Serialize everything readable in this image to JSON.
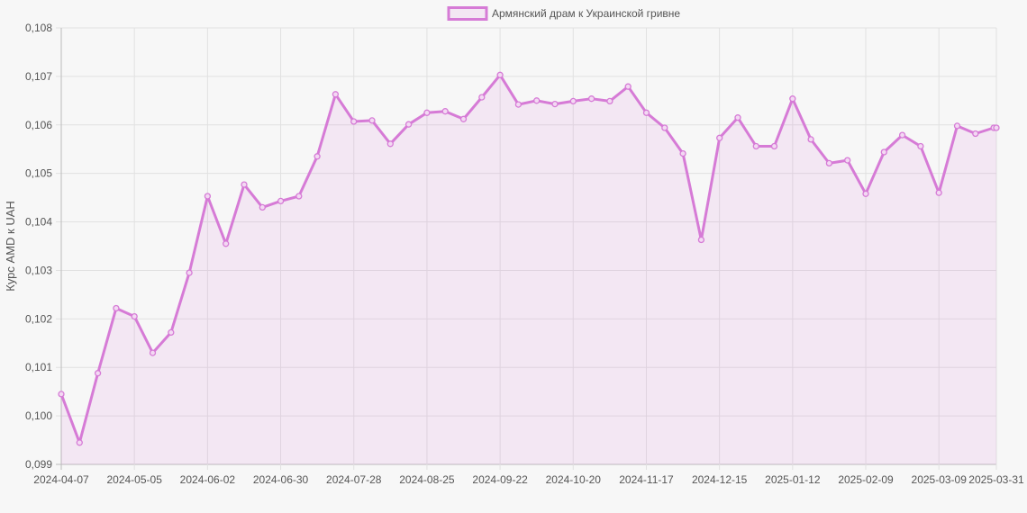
{
  "chart_data": {
    "type": "line",
    "legend_position": "top-center",
    "grid": true,
    "ylabel": "Курс AMD к UAH",
    "xlabel": "",
    "ylim": [
      0.099,
      0.108
    ],
    "y_ticks": [
      "0,099",
      "0,100",
      "0,101",
      "0,102",
      "0,103",
      "0,104",
      "0,105",
      "0,106",
      "0,107",
      "0,108"
    ],
    "x_tick_labels": [
      "2024-04-07",
      "2024-05-05",
      "2024-06-02",
      "2024-06-30",
      "2024-07-28",
      "2024-08-25",
      "2024-09-22",
      "2024-10-20",
      "2024-11-17",
      "2024-12-15",
      "2025-01-12",
      "2025-02-09",
      "2025-03-09",
      "2025-03-31"
    ],
    "x": [
      "2024-04-07",
      "2024-04-14",
      "2024-04-21",
      "2024-04-28",
      "2024-05-05",
      "2024-05-12",
      "2024-05-19",
      "2024-05-26",
      "2024-06-02",
      "2024-06-09",
      "2024-06-16",
      "2024-06-23",
      "2024-06-30",
      "2024-07-07",
      "2024-07-14",
      "2024-07-21",
      "2024-07-28",
      "2024-08-04",
      "2024-08-11",
      "2024-08-18",
      "2024-08-25",
      "2024-09-01",
      "2024-09-08",
      "2024-09-15",
      "2024-09-22",
      "2024-09-29",
      "2024-10-06",
      "2024-10-13",
      "2024-10-20",
      "2024-10-27",
      "2024-11-03",
      "2024-11-10",
      "2024-11-17",
      "2024-11-24",
      "2024-12-01",
      "2024-12-08",
      "2024-12-15",
      "2024-12-22",
      "2024-12-29",
      "2025-01-05",
      "2025-01-12",
      "2025-01-19",
      "2025-01-26",
      "2025-02-02",
      "2025-02-09",
      "2025-02-16",
      "2025-02-23",
      "2025-03-02",
      "2025-03-09",
      "2025-03-16",
      "2025-03-23",
      "2025-03-30",
      "2025-03-31"
    ],
    "series": [
      {
        "name": "Армянский драм к Украинской гривне",
        "color": "#d67bd6",
        "fill": "rgba(214,123,214,0.13)",
        "values": [
          0.10045,
          0.09945,
          0.10088,
          0.10222,
          0.10205,
          0.1013,
          0.10172,
          0.10295,
          0.10453,
          0.10355,
          0.10477,
          0.1043,
          0.10443,
          0.10453,
          0.10535,
          0.10663,
          0.10607,
          0.10609,
          0.10561,
          0.10601,
          0.10625,
          0.10628,
          0.10612,
          0.10657,
          0.10703,
          0.10642,
          0.1065,
          0.10643,
          0.10649,
          0.10654,
          0.10649,
          0.10679,
          0.10625,
          0.10594,
          0.10541,
          0.10363,
          0.10573,
          0.10615,
          0.10556,
          0.10556,
          0.10654,
          0.1057,
          0.10521,
          0.10527,
          0.10458,
          0.10544,
          0.10579,
          0.10556,
          0.1046,
          0.10598,
          0.10582,
          0.10594,
          0.10594
        ]
      }
    ]
  }
}
